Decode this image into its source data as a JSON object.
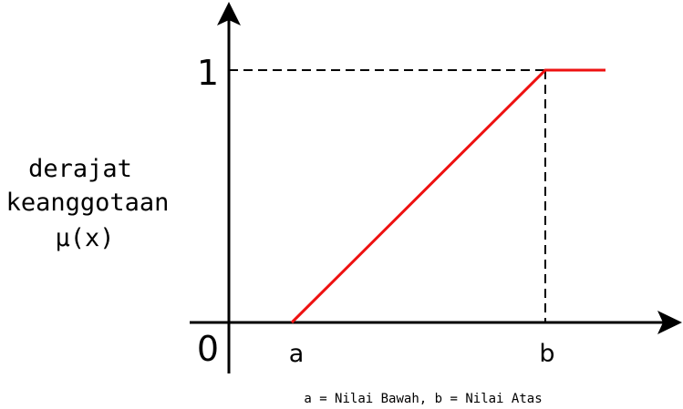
{
  "diagram": {
    "y_axis_label": [
      "derajat",
      "keanggotaan",
      "μ(x)"
    ],
    "y_tick_one": "1",
    "origin_label": "0",
    "x_tick_a": "a",
    "x_tick_b": "b",
    "note": "a = Nilai Bawah, b = Nilai Atas",
    "curve_color": "#ee1111",
    "axis_color": "#000000"
  }
}
